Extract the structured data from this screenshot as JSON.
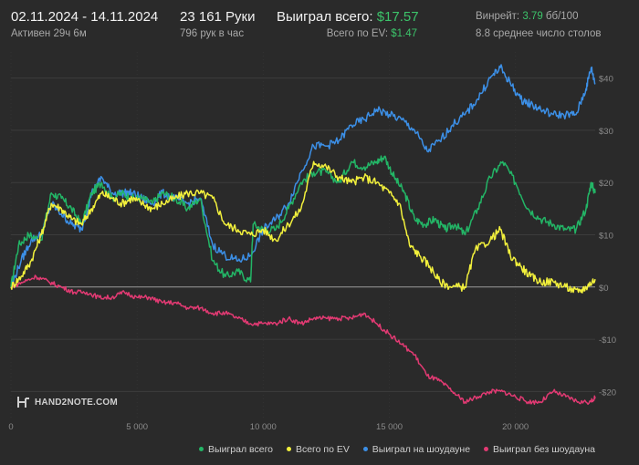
{
  "header": {
    "date_range": "02.11.2024 - 14.11.2024",
    "active_time": "Активен 29ч 6м",
    "hands": "23 161 Руки",
    "hands_per_hour": "796 рук в час",
    "won_total_label": "Выиграл всего:",
    "won_total_value": "$17.57",
    "ev_label": "Всего по EV:",
    "ev_value": "$1.47",
    "winrate_label": "Винрейт:",
    "winrate_value": "3.79",
    "winrate_unit": "бб/100",
    "tables": "8.8 среднее число столов"
  },
  "logo": {
    "text": "HAND2NOTE.COM"
  },
  "legend": {
    "items": [
      {
        "label": "Выиграл всего",
        "color": "#23b566"
      },
      {
        "label": "Всего по EV",
        "color": "#f2f03c"
      },
      {
        "label": "Выиграл на шоудауне",
        "color": "#3c8fe6"
      },
      {
        "label": "Выиграл без шоудауна",
        "color": "#e23a73"
      }
    ]
  },
  "chart_data": {
    "type": "line",
    "title": "",
    "xlabel": "",
    "ylabel": "",
    "xlim": [
      0,
      23161
    ],
    "ylim": [
      -25,
      45
    ],
    "x_ticks": [
      0,
      5000,
      10000,
      15000,
      20000
    ],
    "x_tick_labels": [
      "0",
      "5 000",
      "10 000",
      "15 000",
      "20 000"
    ],
    "y_ticks": [
      40,
      30,
      20,
      10,
      0,
      -10,
      -20
    ],
    "y_tick_labels": [
      "$40",
      "$30",
      "$20",
      "$10",
      "$0",
      "-$10",
      "-$20"
    ],
    "grid": true,
    "legend_position": "bottom-right",
    "series": [
      {
        "name": "Выиграл всего",
        "color": "#23b566",
        "points": [
          [
            0,
            0
          ],
          [
            300,
            8
          ],
          [
            700,
            10
          ],
          [
            1200,
            9
          ],
          [
            1600,
            18
          ],
          [
            2000,
            17
          ],
          [
            2400,
            15
          ],
          [
            2800,
            12
          ],
          [
            3200,
            18
          ],
          [
            3600,
            20
          ],
          [
            4000,
            17
          ],
          [
            4400,
            18
          ],
          [
            4800,
            17
          ],
          [
            5200,
            17
          ],
          [
            5600,
            16
          ],
          [
            6000,
            18
          ],
          [
            6500,
            17
          ],
          [
            7000,
            15
          ],
          [
            7500,
            17
          ],
          [
            8000,
            5
          ],
          [
            8500,
            2
          ],
          [
            9000,
            3
          ],
          [
            9500,
            1
          ],
          [
            9600,
            12
          ],
          [
            10000,
            11
          ],
          [
            10500,
            11
          ],
          [
            11000,
            15
          ],
          [
            11500,
            20
          ],
          [
            12000,
            22
          ],
          [
            12500,
            22
          ],
          [
            13000,
            20
          ],
          [
            13500,
            24
          ],
          [
            14000,
            23
          ],
          [
            14500,
            24
          ],
          [
            14800,
            25
          ],
          [
            15200,
            21
          ],
          [
            15600,
            18
          ],
          [
            16000,
            13
          ],
          [
            16400,
            12
          ],
          [
            16800,
            13
          ],
          [
            17200,
            11
          ],
          [
            17600,
            12
          ],
          [
            18000,
            10
          ],
          [
            18500,
            15
          ],
          [
            19000,
            21
          ],
          [
            19500,
            24
          ],
          [
            20000,
            20
          ],
          [
            20500,
            15
          ],
          [
            21000,
            13
          ],
          [
            21500,
            12
          ],
          [
            22000,
            11
          ],
          [
            22400,
            11
          ],
          [
            22800,
            15
          ],
          [
            23000,
            20
          ],
          [
            23161,
            18
          ]
        ]
      },
      {
        "name": "Всего по EV",
        "color": "#f2f03c",
        "points": [
          [
            0,
            0
          ],
          [
            400,
            2
          ],
          [
            800,
            5
          ],
          [
            1200,
            10
          ],
          [
            1600,
            16
          ],
          [
            2000,
            15
          ],
          [
            2400,
            13
          ],
          [
            2800,
            12
          ],
          [
            3200,
            15
          ],
          [
            3600,
            18
          ],
          [
            4000,
            17
          ],
          [
            4400,
            16
          ],
          [
            4800,
            17
          ],
          [
            5200,
            16
          ],
          [
            5600,
            15
          ],
          [
            6000,
            16
          ],
          [
            6500,
            17
          ],
          [
            7000,
            18
          ],
          [
            7500,
            18
          ],
          [
            8000,
            17
          ],
          [
            8500,
            12
          ],
          [
            9000,
            11
          ],
          [
            9500,
            10
          ],
          [
            10000,
            11
          ],
          [
            10500,
            9
          ],
          [
            11000,
            12
          ],
          [
            11500,
            15
          ],
          [
            12000,
            24
          ],
          [
            12500,
            23
          ],
          [
            13000,
            21
          ],
          [
            13500,
            20
          ],
          [
            14000,
            21
          ],
          [
            14500,
            20
          ],
          [
            15000,
            18
          ],
          [
            15400,
            16
          ],
          [
            15800,
            8
          ],
          [
            16200,
            6
          ],
          [
            16600,
            4
          ],
          [
            17000,
            1
          ],
          [
            17500,
            0
          ],
          [
            18000,
            0
          ],
          [
            18400,
            7
          ],
          [
            19000,
            9
          ],
          [
            19400,
            11
          ],
          [
            19800,
            6
          ],
          [
            20200,
            4
          ],
          [
            20600,
            2
          ],
          [
            21000,
            1
          ],
          [
            21500,
            1
          ],
          [
            22000,
            0
          ],
          [
            22500,
            -1
          ],
          [
            22800,
            0
          ],
          [
            23161,
            1.5
          ]
        ]
      },
      {
        "name": "Выиграл на шоудауне",
        "color": "#3c8fe6",
        "points": [
          [
            0,
            0
          ],
          [
            400,
            5
          ],
          [
            800,
            9
          ],
          [
            1200,
            10
          ],
          [
            1600,
            16
          ],
          [
            2000,
            14
          ],
          [
            2400,
            12
          ],
          [
            2800,
            11
          ],
          [
            3200,
            18
          ],
          [
            3600,
            21
          ],
          [
            4000,
            18
          ],
          [
            4400,
            18
          ],
          [
            4800,
            18
          ],
          [
            5200,
            17
          ],
          [
            5600,
            16
          ],
          [
            6000,
            18
          ],
          [
            6500,
            17
          ],
          [
            7000,
            16
          ],
          [
            7500,
            17
          ],
          [
            8000,
            8
          ],
          [
            8500,
            6
          ],
          [
            9000,
            5
          ],
          [
            9500,
            6
          ],
          [
            10000,
            11
          ],
          [
            10500,
            13
          ],
          [
            11000,
            16
          ],
          [
            11500,
            22
          ],
          [
            12000,
            27
          ],
          [
            12500,
            27
          ],
          [
            13000,
            28
          ],
          [
            13500,
            31
          ],
          [
            14000,
            32
          ],
          [
            14500,
            34
          ],
          [
            15000,
            33
          ],
          [
            15500,
            32
          ],
          [
            16000,
            30
          ],
          [
            16500,
            26
          ],
          [
            17000,
            28
          ],
          [
            17500,
            31
          ],
          [
            18000,
            33
          ],
          [
            18500,
            36
          ],
          [
            19000,
            40
          ],
          [
            19400,
            42
          ],
          [
            19800,
            39
          ],
          [
            20200,
            36
          ],
          [
            20600,
            35
          ],
          [
            21000,
            34
          ],
          [
            21500,
            33
          ],
          [
            22000,
            33
          ],
          [
            22400,
            33
          ],
          [
            22800,
            38
          ],
          [
            23000,
            42
          ],
          [
            23161,
            39
          ]
        ]
      },
      {
        "name": "Выиграл без шоудауна",
        "color": "#e23a73",
        "points": [
          [
            0,
            0
          ],
          [
            500,
            1
          ],
          [
            1000,
            2
          ],
          [
            1500,
            1
          ],
          [
            2000,
            0
          ],
          [
            2500,
            -1
          ],
          [
            3000,
            -1
          ],
          [
            3500,
            -2
          ],
          [
            4000,
            -2
          ],
          [
            4500,
            -1
          ],
          [
            5000,
            -2
          ],
          [
            5500,
            -2
          ],
          [
            6000,
            -3
          ],
          [
            6500,
            -3
          ],
          [
            7000,
            -4
          ],
          [
            7500,
            -4
          ],
          [
            8000,
            -5
          ],
          [
            8500,
            -5
          ],
          [
            9000,
            -6
          ],
          [
            9500,
            -7
          ],
          [
            10000,
            -7
          ],
          [
            10500,
            -7
          ],
          [
            11000,
            -6
          ],
          [
            11500,
            -7
          ],
          [
            12000,
            -6
          ],
          [
            12500,
            -6
          ],
          [
            13000,
            -6
          ],
          [
            13500,
            -6
          ],
          [
            14000,
            -5
          ],
          [
            14500,
            -7
          ],
          [
            15000,
            -9
          ],
          [
            15500,
            -11
          ],
          [
            16000,
            -13
          ],
          [
            16500,
            -17
          ],
          [
            17000,
            -18
          ],
          [
            17500,
            -20
          ],
          [
            18000,
            -22
          ],
          [
            18500,
            -21
          ],
          [
            19000,
            -20
          ],
          [
            19500,
            -20
          ],
          [
            20000,
            -21
          ],
          [
            20500,
            -22
          ],
          [
            21000,
            -22
          ],
          [
            21500,
            -20
          ],
          [
            22000,
            -21
          ],
          [
            22500,
            -22
          ],
          [
            23000,
            -22
          ],
          [
            23161,
            -21
          ]
        ]
      }
    ]
  }
}
